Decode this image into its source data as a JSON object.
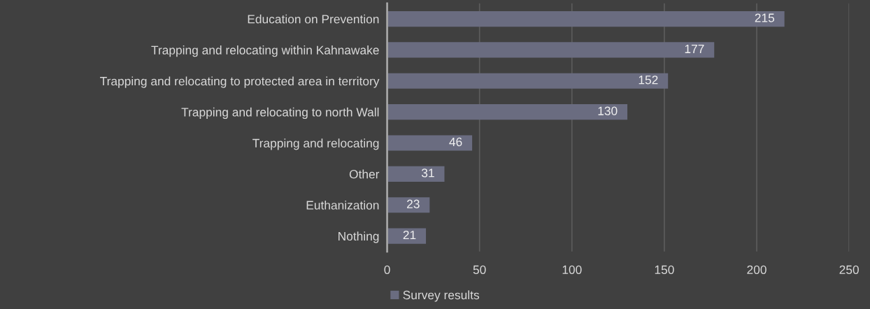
{
  "chart_data": {
    "type": "bar",
    "orientation": "horizontal",
    "categories": [
      "Education on Prevention",
      "Trapping and relocating within Kahnawake",
      "Trapping and relocating to protected area in territory",
      "Trapping and relocating to north Wall",
      "Trapping and relocating",
      "Other",
      "Euthanization",
      "Nothing"
    ],
    "series": [
      {
        "name": "Survey results",
        "color": "#6a6c80",
        "values": [
          215,
          177,
          152,
          130,
          46,
          31,
          23,
          21
        ]
      }
    ],
    "xlim": [
      0,
      250
    ],
    "xticks": [
      0,
      50,
      100,
      150,
      200,
      250
    ],
    "grid": "x",
    "legend": "bottom",
    "data_labels": true
  }
}
